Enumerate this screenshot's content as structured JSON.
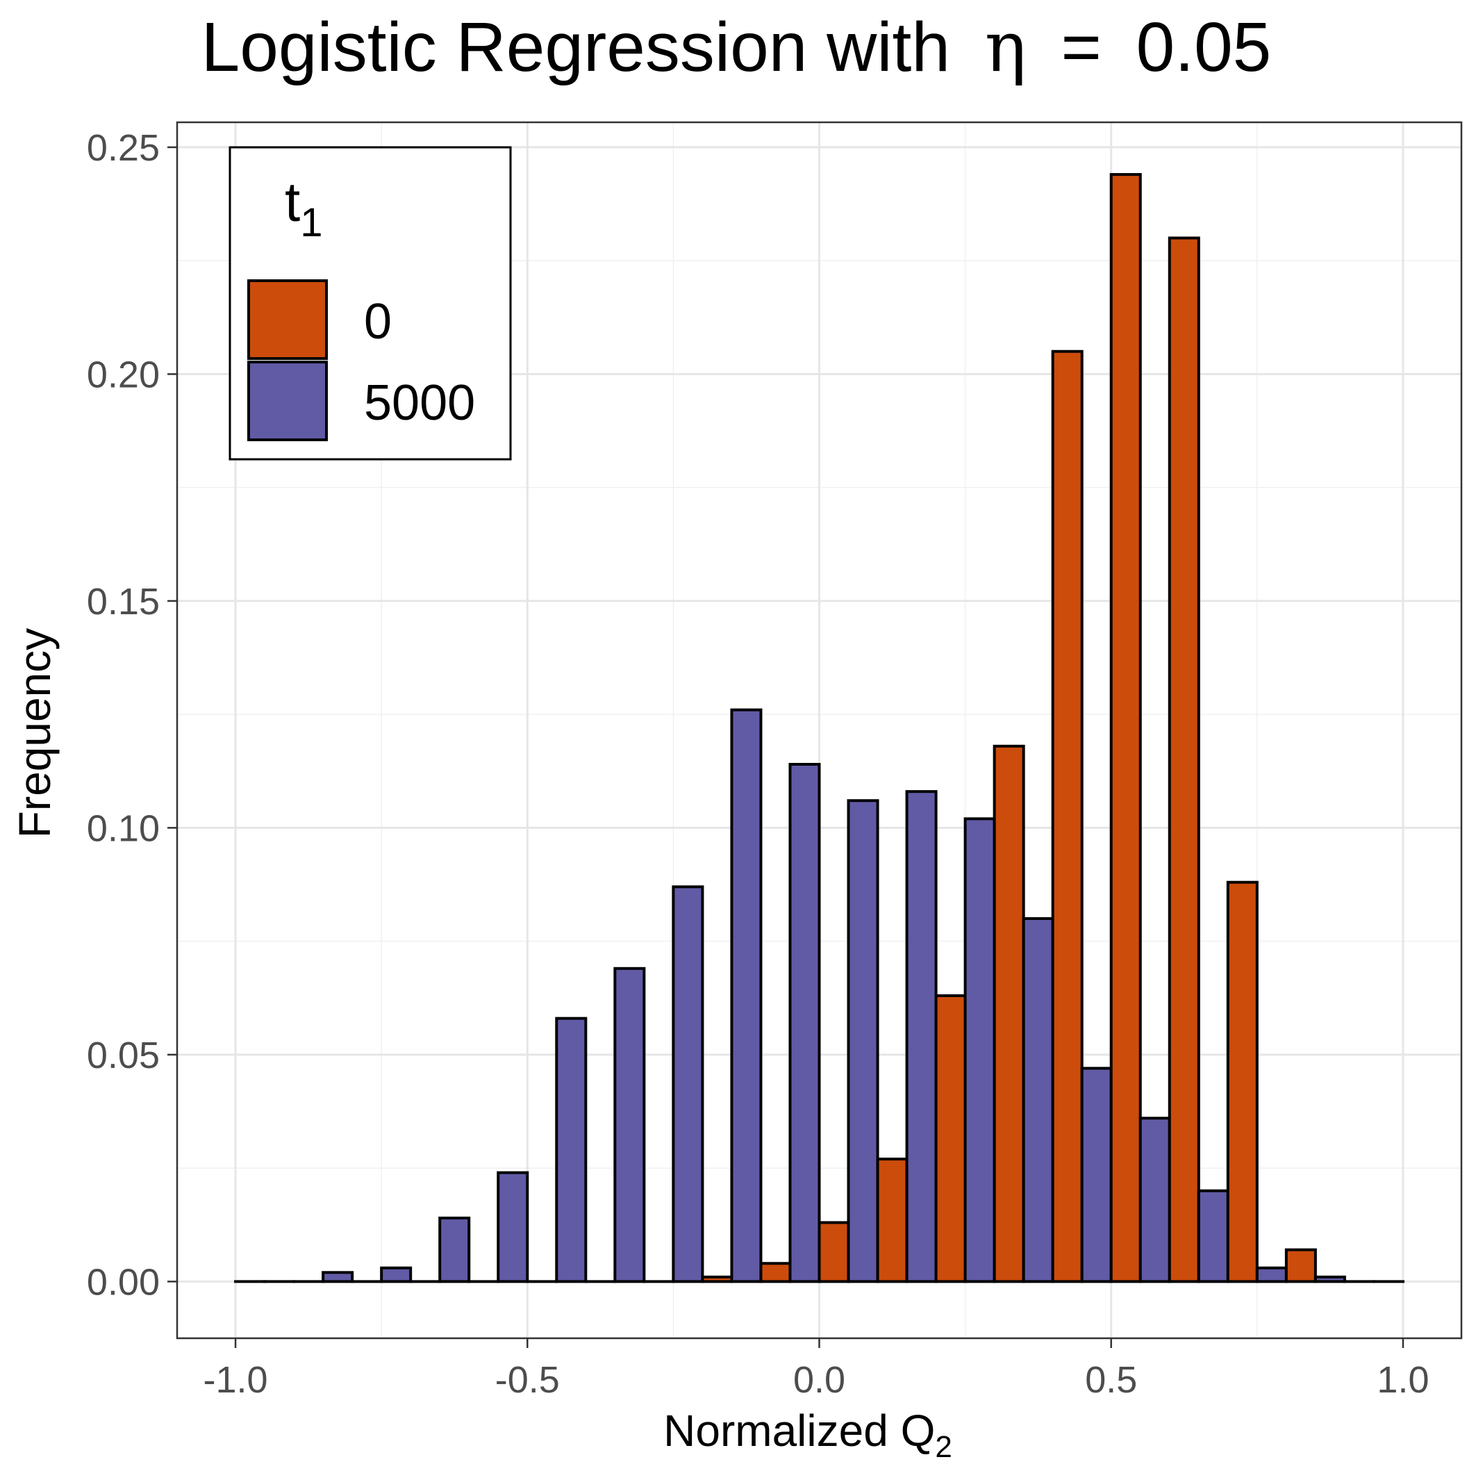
{
  "chart_data": {
    "type": "bar",
    "title": "Logistic Regression with",
    "title_symbol": "η",
    "title_operator": "=",
    "title_value": "0.05",
    "xlabel": "Normalized Q",
    "xlabel_subscript": "2",
    "ylabel": "Frequency",
    "xlim": [
      -1.1,
      1.1
    ],
    "ylim": [
      -0.0125,
      0.2555
    ],
    "x_ticks": [
      -1.0,
      -0.5,
      0.0,
      0.5,
      1.0
    ],
    "x_tick_labels": [
      "-1.0",
      "-0.5",
      "0.0",
      "0.5",
      "1.0"
    ],
    "y_ticks": [
      0.0,
      0.05,
      0.1,
      0.15,
      0.2,
      0.25
    ],
    "y_tick_labels": [
      "0.00",
      "0.05",
      "0.10",
      "0.15",
      "0.20",
      "0.25"
    ],
    "grid": true,
    "legend": {
      "title": "t",
      "title_subscript": "1",
      "position": "top-left"
    },
    "bin_width": 0.1,
    "bin_centers": [
      -0.95,
      -0.85,
      -0.75,
      -0.65,
      -0.55,
      -0.45,
      -0.35,
      -0.25,
      -0.15,
      -0.05,
      0.05,
      0.15,
      0.25,
      0.35,
      0.45,
      0.55,
      0.65,
      0.75,
      0.85,
      0.95
    ],
    "series": [
      {
        "name": "0",
        "color": "#cc4c0c",
        "values": [
          0,
          0,
          0,
          0,
          0,
          0,
          0,
          0,
          0.001,
          0.004,
          0.013,
          0.027,
          0.063,
          0.118,
          0.205,
          0.244,
          0.23,
          0.088,
          0.007,
          0
        ]
      },
      {
        "name": "5000",
        "color": "#615ba6",
        "values": [
          0,
          0.002,
          0.003,
          0.014,
          0.024,
          0.058,
          0.069,
          0.087,
          0.126,
          0.114,
          0.106,
          0.108,
          0.102,
          0.08,
          0.047,
          0.036,
          0.02,
          0.003,
          0.001,
          0
        ]
      }
    ]
  }
}
